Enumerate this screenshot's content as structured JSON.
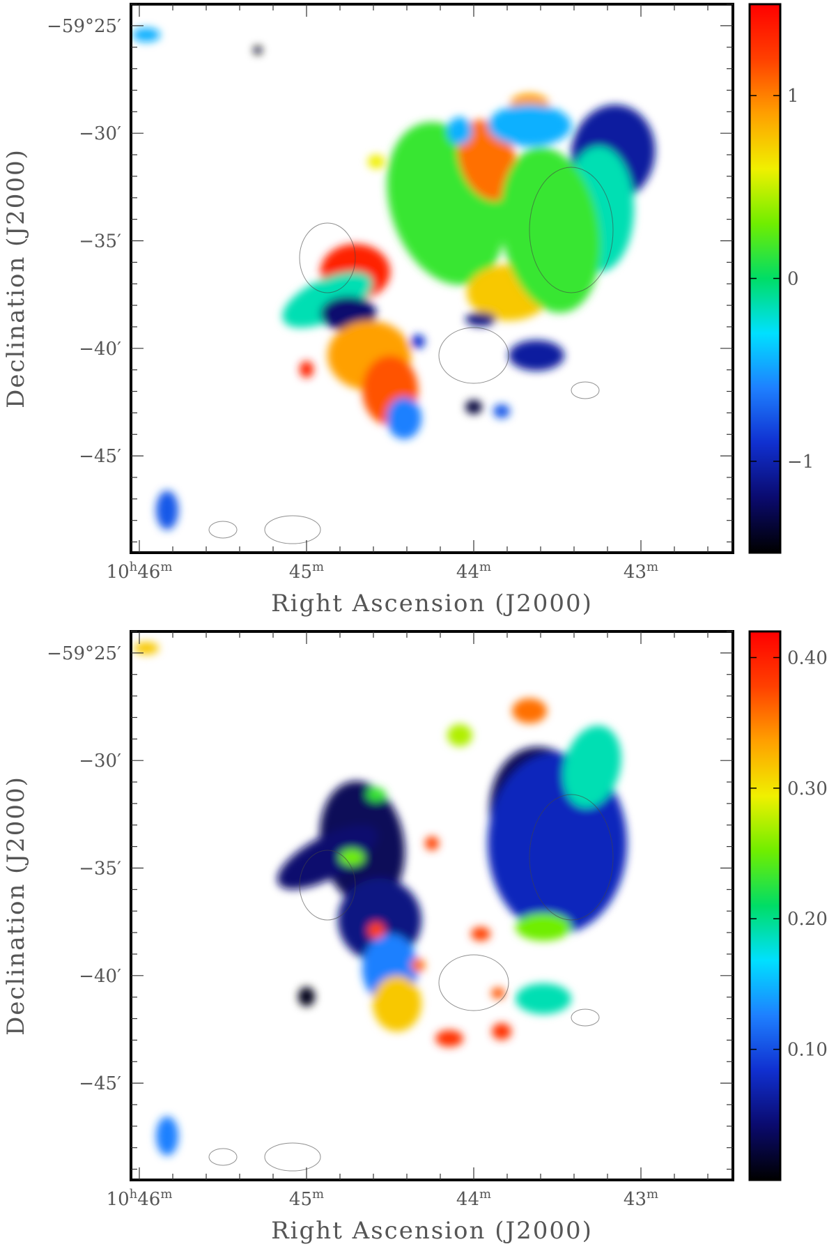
{
  "chart_data": [
    {
      "type": "heatmap",
      "xlabel": "Right Ascension (J2000)",
      "ylabel": "Declination (J2000)",
      "x_ticks": [
        {
          "major": "10",
          "h": "h",
          "mm": "46",
          "m": "m",
          "ra_min": 46
        },
        {
          "major": "",
          "h": "",
          "mm": "45",
          "m": "m",
          "ra_min": 45
        },
        {
          "major": "",
          "h": "",
          "mm": "44",
          "m": "m",
          "ra_min": 44
        },
        {
          "major": "",
          "h": "",
          "mm": "43",
          "m": "m",
          "ra_min": 43
        }
      ],
      "y_ticks": [
        {
          "label": "−59°25′",
          "dec_arcmin": -25
        },
        {
          "label": "−30′",
          "dec_arcmin": -30
        },
        {
          "label": "−35′",
          "dec_arcmin": -35
        },
        {
          "label": "−40′",
          "dec_arcmin": -40
        },
        {
          "label": "−45′",
          "dec_arcmin": -45
        }
      ],
      "xlim_ra_min": [
        46.05,
        42.45
      ],
      "ylim_dec_arcmin": [
        -49.5,
        -24.0
      ],
      "colorbar": {
        "range": [
          -1.5,
          1.5
        ],
        "ticks": [
          {
            "label": "1",
            "value": 1
          },
          {
            "label": "0",
            "value": 0
          },
          {
            "label": "−1",
            "value": -1
          }
        ],
        "colormap": [
          "#000000",
          "#0a0a6e",
          "#1030d0",
          "#1e80ff",
          "#00e0ff",
          "#00dd66",
          "#70ee00",
          "#f0f000",
          "#ffa000",
          "#ff4000",
          "#ff0000"
        ]
      }
    },
    {
      "type": "heatmap",
      "xlabel": "Right Ascension (J2000)",
      "ylabel": "Declination (J2000)",
      "x_ticks": [
        {
          "major": "10",
          "h": "h",
          "mm": "46",
          "m": "m",
          "ra_min": 46
        },
        {
          "major": "",
          "h": "",
          "mm": "45",
          "m": "m",
          "ra_min": 45
        },
        {
          "major": "",
          "h": "",
          "mm": "44",
          "m": "m",
          "ra_min": 44
        },
        {
          "major": "",
          "h": "",
          "mm": "43",
          "m": "m",
          "ra_min": 43
        }
      ],
      "y_ticks": [
        {
          "label": "−59°25′",
          "dec_arcmin": -25
        },
        {
          "label": "−30′",
          "dec_arcmin": -30
        },
        {
          "label": "−35′",
          "dec_arcmin": -35
        },
        {
          "label": "−40′",
          "dec_arcmin": -40
        },
        {
          "label": "−45′",
          "dec_arcmin": -45
        }
      ],
      "xlim_ra_min": [
        46.05,
        42.45
      ],
      "ylim_dec_arcmin": [
        -49.5,
        -24.0
      ],
      "colorbar": {
        "range": [
          0.0,
          0.42
        ],
        "ticks": [
          {
            "label": "0.40",
            "value": 0.4
          },
          {
            "label": "0.30",
            "value": 0.3
          },
          {
            "label": "0.20",
            "value": 0.2
          },
          {
            "label": "0.10",
            "value": 0.1
          }
        ],
        "colormap": [
          "#000000",
          "#0a0a6e",
          "#1030d0",
          "#1e80ff",
          "#00e0ff",
          "#00dd66",
          "#70ee00",
          "#f0f000",
          "#ffa000",
          "#ff4000",
          "#ff0000"
        ]
      }
    }
  ]
}
